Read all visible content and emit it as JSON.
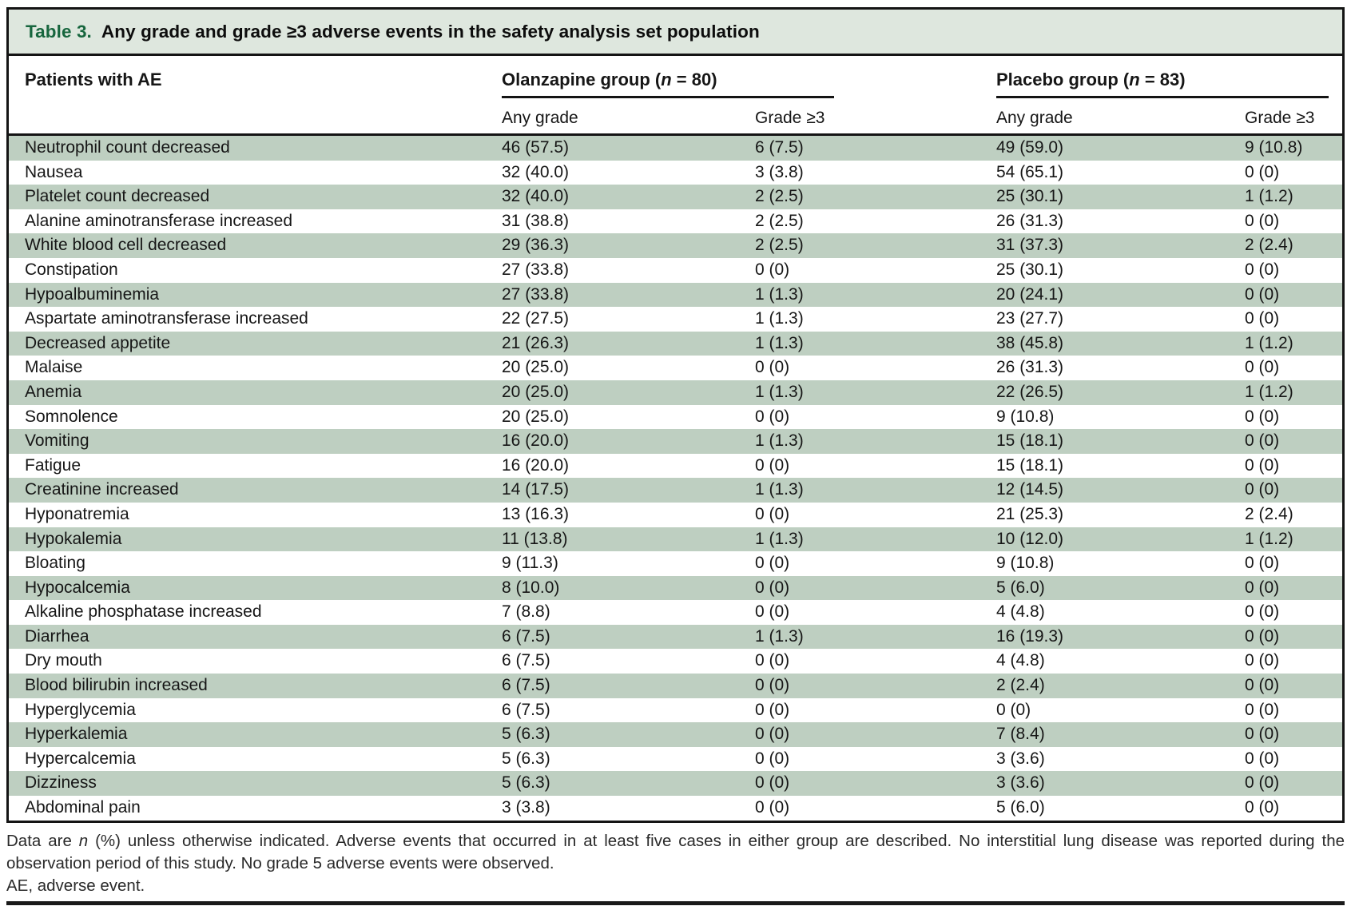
{
  "title": {
    "label": "Table 3.",
    "text": "Any grade and grade ≥3 adverse events in the safety analysis set population"
  },
  "header": {
    "patients_column": "Patients with AE",
    "groups": {
      "olanzapine": {
        "prefix": "Olanzapine group (",
        "n": "n",
        "suffix": " = 80)"
      },
      "placebo": {
        "prefix": "Placebo group (",
        "n": "n",
        "suffix": " = 83)"
      }
    },
    "subcolumns": {
      "any_grade": "Any grade",
      "grade3": "Grade ≥3"
    }
  },
  "rows": [
    {
      "event": "Neutrophil count decreased",
      "olanzapine_any_grade": "46 (57.5)",
      "olanzapine_grade3": "6 (7.5)",
      "placebo_any_grade": "49 (59.0)",
      "placebo_grade3": "9 (10.8)"
    },
    {
      "event": "Nausea",
      "olanzapine_any_grade": "32 (40.0)",
      "olanzapine_grade3": "3 (3.8)",
      "placebo_any_grade": "54 (65.1)",
      "placebo_grade3": "0 (0)"
    },
    {
      "event": "Platelet count decreased",
      "olanzapine_any_grade": "32 (40.0)",
      "olanzapine_grade3": "2 (2.5)",
      "placebo_any_grade": "25 (30.1)",
      "placebo_grade3": "1 (1.2)"
    },
    {
      "event": "Alanine aminotransferase increased",
      "olanzapine_any_grade": "31 (38.8)",
      "olanzapine_grade3": "2 (2.5)",
      "placebo_any_grade": "26 (31.3)",
      "placebo_grade3": "0 (0)"
    },
    {
      "event": "White blood cell decreased",
      "olanzapine_any_grade": "29 (36.3)",
      "olanzapine_grade3": "2 (2.5)",
      "placebo_any_grade": "31 (37.3)",
      "placebo_grade3": "2 (2.4)"
    },
    {
      "event": "Constipation",
      "olanzapine_any_grade": "27 (33.8)",
      "olanzapine_grade3": "0 (0)",
      "placebo_any_grade": "25 (30.1)",
      "placebo_grade3": "0 (0)"
    },
    {
      "event": "Hypoalbuminemia",
      "olanzapine_any_grade": "27 (33.8)",
      "olanzapine_grade3": "1 (1.3)",
      "placebo_any_grade": "20 (24.1)",
      "placebo_grade3": "0 (0)"
    },
    {
      "event": "Aspartate aminotransferase increased",
      "olanzapine_any_grade": "22 (27.5)",
      "olanzapine_grade3": "1 (1.3)",
      "placebo_any_grade": "23 (27.7)",
      "placebo_grade3": "0 (0)"
    },
    {
      "event": "Decreased appetite",
      "olanzapine_any_grade": "21 (26.3)",
      "olanzapine_grade3": "1 (1.3)",
      "placebo_any_grade": "38 (45.8)",
      "placebo_grade3": "1 (1.2)"
    },
    {
      "event": "Malaise",
      "olanzapine_any_grade": "20 (25.0)",
      "olanzapine_grade3": "0 (0)",
      "placebo_any_grade": "26 (31.3)",
      "placebo_grade3": "0 (0)"
    },
    {
      "event": "Anemia",
      "olanzapine_any_grade": "20 (25.0)",
      "olanzapine_grade3": "1 (1.3)",
      "placebo_any_grade": "22 (26.5)",
      "placebo_grade3": "1 (1.2)"
    },
    {
      "event": "Somnolence",
      "olanzapine_any_grade": "20 (25.0)",
      "olanzapine_grade3": "0 (0)",
      "placebo_any_grade": "9 (10.8)",
      "placebo_grade3": "0 (0)"
    },
    {
      "event": "Vomiting",
      "olanzapine_any_grade": "16 (20.0)",
      "olanzapine_grade3": "1 (1.3)",
      "placebo_any_grade": "15 (18.1)",
      "placebo_grade3": "0 (0)"
    },
    {
      "event": "Fatigue",
      "olanzapine_any_grade": "16 (20.0)",
      "olanzapine_grade3": "0 (0)",
      "placebo_any_grade": "15 (18.1)",
      "placebo_grade3": "0 (0)"
    },
    {
      "event": "Creatinine increased",
      "olanzapine_any_grade": "14 (17.5)",
      "olanzapine_grade3": "1 (1.3)",
      "placebo_any_grade": "12 (14.5)",
      "placebo_grade3": "0 (0)"
    },
    {
      "event": "Hyponatremia",
      "olanzapine_any_grade": "13 (16.3)",
      "olanzapine_grade3": "0 (0)",
      "placebo_any_grade": "21 (25.3)",
      "placebo_grade3": "2 (2.4)"
    },
    {
      "event": "Hypokalemia",
      "olanzapine_any_grade": "11 (13.8)",
      "olanzapine_grade3": "1 (1.3)",
      "placebo_any_grade": "10 (12.0)",
      "placebo_grade3": "1 (1.2)"
    },
    {
      "event": "Bloating",
      "olanzapine_any_grade": "9 (11.3)",
      "olanzapine_grade3": "0 (0)",
      "placebo_any_grade": "9 (10.8)",
      "placebo_grade3": "0 (0)"
    },
    {
      "event": "Hypocalcemia",
      "olanzapine_any_grade": "8 (10.0)",
      "olanzapine_grade3": "0 (0)",
      "placebo_any_grade": "5 (6.0)",
      "placebo_grade3": "0 (0)"
    },
    {
      "event": "Alkaline phosphatase increased",
      "olanzapine_any_grade": "7 (8.8)",
      "olanzapine_grade3": "0 (0)",
      "placebo_any_grade": "4 (4.8)",
      "placebo_grade3": "0 (0)"
    },
    {
      "event": "Diarrhea",
      "olanzapine_any_grade": "6 (7.5)",
      "olanzapine_grade3": "1 (1.3)",
      "placebo_any_grade": "16 (19.3)",
      "placebo_grade3": "0 (0)"
    },
    {
      "event": "Dry mouth",
      "olanzapine_any_grade": "6 (7.5)",
      "olanzapine_grade3": "0 (0)",
      "placebo_any_grade": "4 (4.8)",
      "placebo_grade3": "0 (0)"
    },
    {
      "event": "Blood bilirubin increased",
      "olanzapine_any_grade": "6 (7.5)",
      "olanzapine_grade3": "0 (0)",
      "placebo_any_grade": "2 (2.4)",
      "placebo_grade3": "0 (0)"
    },
    {
      "event": "Hyperglycemia",
      "olanzapine_any_grade": "6 (7.5)",
      "olanzapine_grade3": "0 (0)",
      "placebo_any_grade": "0 (0)",
      "placebo_grade3": "0 (0)"
    },
    {
      "event": "Hyperkalemia",
      "olanzapine_any_grade": "5 (6.3)",
      "olanzapine_grade3": "0 (0)",
      "placebo_any_grade": "7 (8.4)",
      "placebo_grade3": "0 (0)"
    },
    {
      "event": "Hypercalcemia",
      "olanzapine_any_grade": "5 (6.3)",
      "olanzapine_grade3": "0 (0)",
      "placebo_any_grade": "3 (3.6)",
      "placebo_grade3": "0 (0)"
    },
    {
      "event": "Dizziness",
      "olanzapine_any_grade": "5 (6.3)",
      "olanzapine_grade3": "0 (0)",
      "placebo_any_grade": "3 (3.6)",
      "placebo_grade3": "0 (0)"
    },
    {
      "event": "Abdominal pain",
      "olanzapine_any_grade": "3 (3.8)",
      "olanzapine_grade3": "0 (0)",
      "placebo_any_grade": "5 (6.0)",
      "placebo_grade3": "0 (0)"
    }
  ],
  "footnotes": {
    "line1_pre": "Data are ",
    "line1_italic": "n",
    "line1_post": " (%) unless otherwise indicated. Adverse events that occurred in at least five cases in either group are described. No interstitial lung disease was reported during the observation period of this study. No grade 5 adverse events were observed.",
    "abbreviation": "AE, adverse event."
  },
  "colors": {
    "table_label_green": "#17663e",
    "row_stripe_green": "#becfc1",
    "title_bar_background": "#dee7de"
  }
}
